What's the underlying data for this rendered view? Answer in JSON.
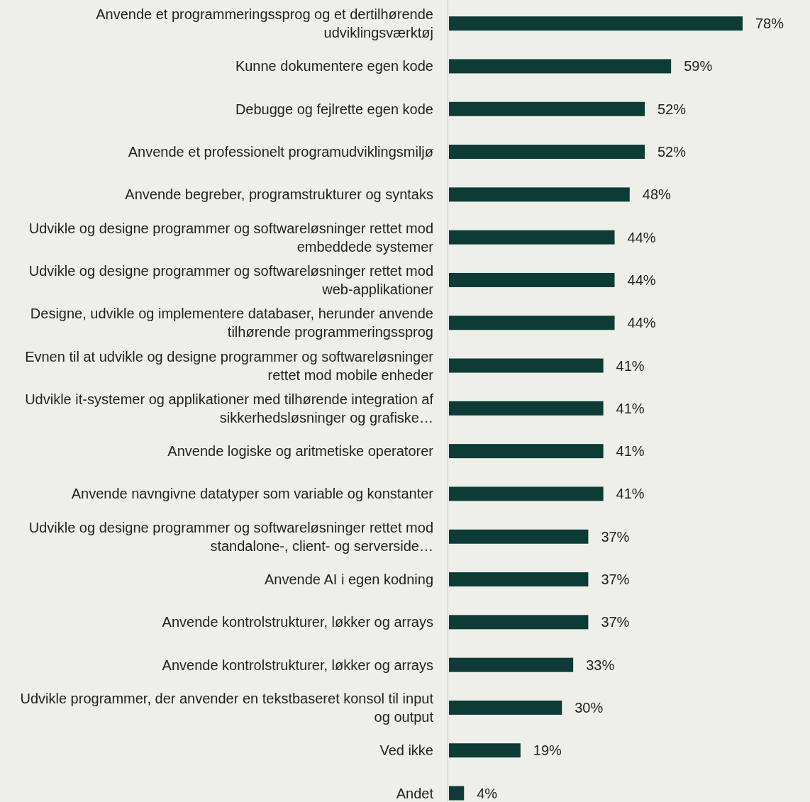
{
  "chart_data": {
    "type": "bar",
    "orientation": "horizontal",
    "categories": [
      "Anvende et programmeringssprog og et dertilhørende udviklingsværktøj",
      "Kunne dokumentere egen kode",
      "Debugge og fejlrette egen kode",
      "Anvende et professionelt programudviklingsmiljø",
      "Anvende begreber, programstrukturer og syntaks",
      "Udvikle og designe programmer og softwareløsninger rettet mod embeddede systemer",
      "Udvikle og designe programmer og softwareløsninger rettet mod web-applikationer",
      "Designe, udvikle og implementere databaser, herunder anvende tilhørende programmeringssprog",
      "Evnen til at udvikle og designe programmer og softwareløsninger rettet mod mobile enheder",
      "Udvikle it-systemer og applikationer med tilhørende integration af sikkerhedsløsninger og grafiske…",
      "Anvende logiske og aritmetiske operatorer",
      "Anvende navngivne datatyper som variable og konstanter",
      "Udvikle og designe programmer og softwareløsninger rettet mod standalone-, client- og serverside…",
      "Anvende AI i egen kodning",
      "Anvende kontrolstrukturer, løkker og arrays",
      "Anvende kontrolstrukturer, løkker og arrays",
      "Udvikle programmer, der anvender en tekstbaseret konsol til input og output",
      "Ved ikke",
      "Andet"
    ],
    "values": [
      78,
      59,
      52,
      52,
      48,
      44,
      44,
      44,
      41,
      41,
      41,
      41,
      37,
      37,
      37,
      33,
      30,
      19,
      4
    ],
    "value_labels": [
      "78%",
      "59%",
      "52%",
      "52%",
      "48%",
      "44%",
      "44%",
      "44%",
      "41%",
      "41%",
      "41%",
      "41%",
      "37%",
      "37%",
      "37%",
      "33%",
      "30%",
      "19%",
      "4%"
    ],
    "color": "#0d3b35"
  }
}
